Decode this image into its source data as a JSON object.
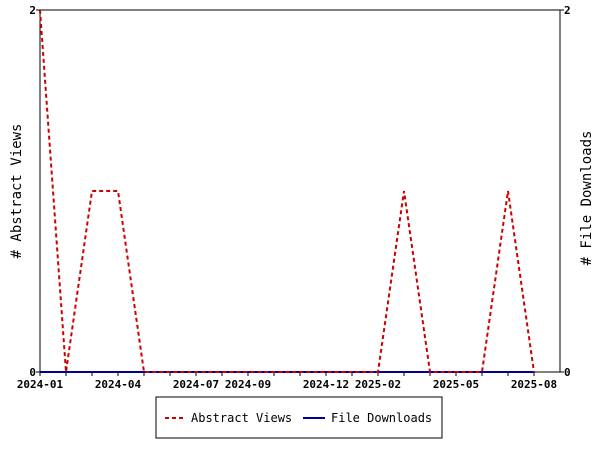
{
  "chart_data": {
    "type": "line",
    "xlabel": "",
    "ylabel_left": "# Abstract Views",
    "ylabel_right": "# File Downloads",
    "x_tick_labels": [
      "2024-01",
      "2024-04",
      "2024-07",
      "2024-09",
      "2024-12",
      "2025-02",
      "2025-05",
      "2025-08"
    ],
    "left_y_ticks": [
      "0",
      "2"
    ],
    "right_y_ticks": [
      "0",
      "2"
    ],
    "ylim": [
      0,
      2
    ],
    "grid": false,
    "legend_position": "bottom-center",
    "x": [
      "2024-01",
      "2024-02",
      "2024-03",
      "2024-04",
      "2024-05",
      "2024-06",
      "2024-07",
      "2024-08",
      "2024-09",
      "2024-10",
      "2024-11",
      "2024-12",
      "2025-01",
      "2025-02",
      "2025-03",
      "2025-04",
      "2025-05",
      "2025-06",
      "2025-07",
      "2025-08"
    ],
    "series": [
      {
        "name": "Abstract Views",
        "axis": "left",
        "color": "#cc0000",
        "style": "dashed",
        "values": [
          2,
          0,
          1,
          1,
          0,
          0,
          0,
          0,
          0,
          0,
          0,
          0,
          0,
          0,
          1,
          0,
          0,
          0,
          1,
          0
        ]
      },
      {
        "name": "File Downloads",
        "axis": "right",
        "color": "#000099",
        "style": "solid",
        "values": [
          0,
          0,
          0,
          0,
          0,
          0,
          0,
          0,
          0,
          0,
          0,
          0,
          0,
          0,
          0,
          0,
          0,
          0,
          0,
          0
        ]
      }
    ]
  }
}
